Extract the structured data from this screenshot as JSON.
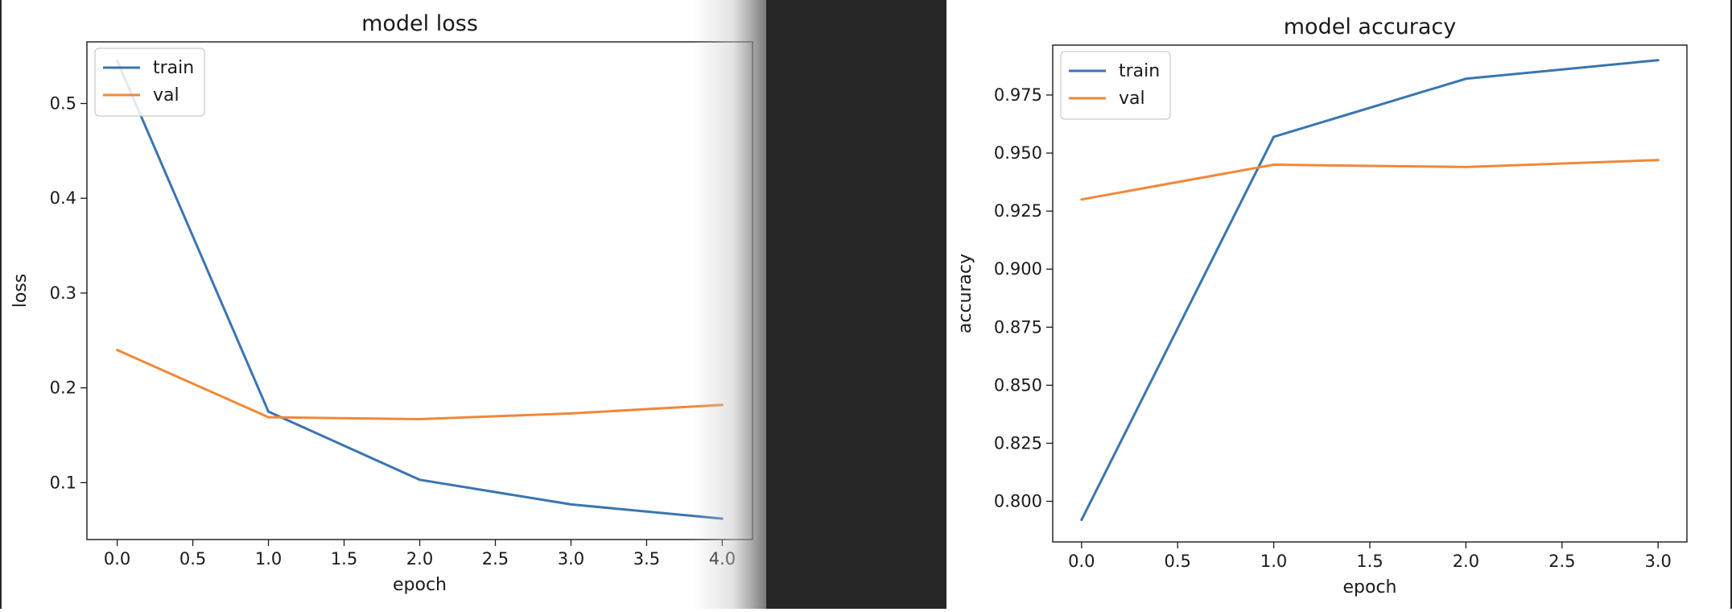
{
  "chart_data": [
    {
      "type": "line",
      "title": "model loss",
      "xlabel": "epoch",
      "ylabel": "loss",
      "xlim": [
        -0.2,
        4.2
      ],
      "ylim": [
        0.04,
        0.565
      ],
      "xticks": [
        0.0,
        0.5,
        1.0,
        1.5,
        2.0,
        2.5,
        3.0,
        3.5,
        4.0
      ],
      "xtick_labels": [
        "0.0",
        "0.5",
        "1.0",
        "1.5",
        "2.0",
        "2.5",
        "3.0",
        "3.5",
        "4.0"
      ],
      "yticks": [
        0.1,
        0.2,
        0.3,
        0.4,
        0.5
      ],
      "ytick_labels": [
        "0.1",
        "0.2",
        "0.3",
        "0.4",
        "0.5"
      ],
      "x": [
        0,
        1,
        2,
        3,
        4
      ],
      "series": [
        {
          "name": "train",
          "color": "#3a75b0",
          "values": [
            0.545,
            0.175,
            0.103,
            0.077,
            0.062
          ]
        },
        {
          "name": "val",
          "color": "#f0883a",
          "values": [
            0.24,
            0.169,
            0.167,
            0.173,
            0.182
          ]
        }
      ],
      "legend": "upper left",
      "grid": false
    },
    {
      "type": "line",
      "title": "model accuracy",
      "xlabel": "epoch",
      "ylabel": "accuracy",
      "xlim": [
        -0.15,
        3.15
      ],
      "ylim": [
        0.7825,
        0.9965
      ],
      "xticks": [
        0.0,
        0.5,
        1.0,
        1.5,
        2.0,
        2.5,
        3.0
      ],
      "xtick_labels": [
        "0.0",
        "0.5",
        "1.0",
        "1.5",
        "2.0",
        "2.5",
        "3.0"
      ],
      "yticks": [
        0.8,
        0.825,
        0.85,
        0.875,
        0.9,
        0.925,
        0.95,
        0.975
      ],
      "ytick_labels": [
        "0.800",
        "0.825",
        "0.850",
        "0.875",
        "0.900",
        "0.925",
        "0.950",
        "0.975"
      ],
      "x": [
        0,
        1,
        2,
        3
      ],
      "series": [
        {
          "name": "train",
          "color": "#3a75b0",
          "values": [
            0.792,
            0.957,
            0.982,
            0.99
          ]
        },
        {
          "name": "val",
          "color": "#f0883a",
          "values": [
            0.93,
            0.945,
            0.944,
            0.947
          ]
        }
      ],
      "legend": "upper left",
      "grid": false
    }
  ]
}
